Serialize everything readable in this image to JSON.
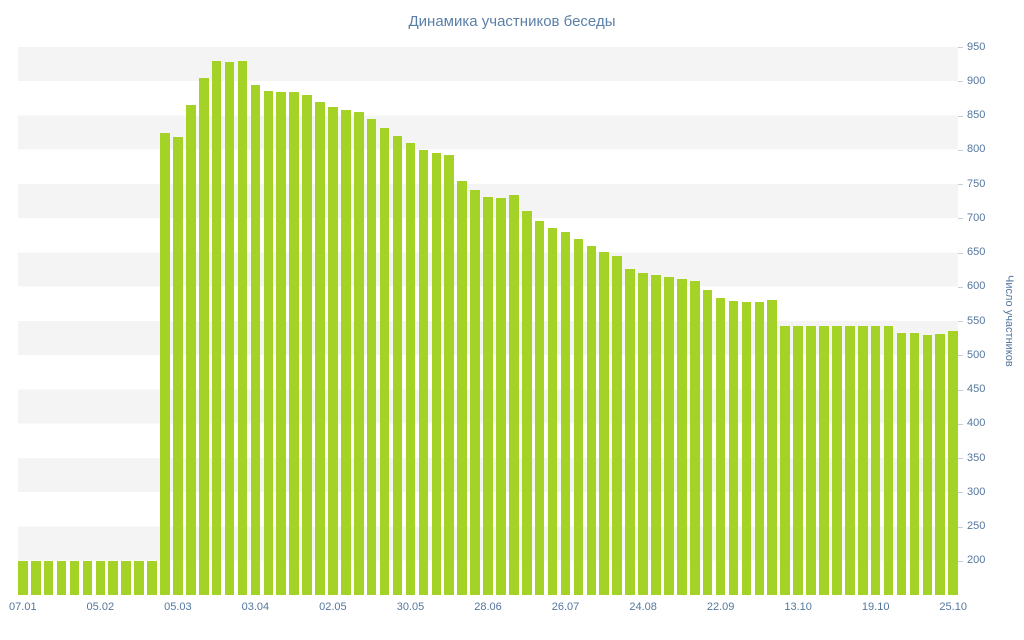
{
  "page": {
    "background": "#ffffff"
  },
  "chart_data": {
    "type": "bar",
    "title": "Динамика участников беседы",
    "xlabel": "",
    "ylabel": "Число участников",
    "ylim": [
      150,
      950
    ],
    "grid": "horizontal-stripe-bands",
    "legend": "none",
    "y_axis_side": "right",
    "yticks": [
      950,
      900,
      850,
      800,
      750,
      700,
      650,
      600,
      550,
      500,
      450,
      400,
      350,
      300,
      250,
      200
    ],
    "x_labels": [
      "07.01",
      "05.02",
      "05.03",
      "03.04",
      "02.05",
      "30.05",
      "28.06",
      "26.07",
      "24.08",
      "22.09",
      "13.10",
      "19.10",
      "25.10"
    ],
    "xtick_every": 6,
    "values": [
      200,
      200,
      200,
      200,
      200,
      200,
      200,
      200,
      200,
      200,
      200,
      825,
      818,
      865,
      905,
      930,
      928,
      930,
      895,
      886,
      885,
      884,
      880,
      870,
      862,
      858,
      855,
      845,
      832,
      820,
      810,
      800,
      795,
      793,
      755,
      742,
      731,
      730,
      734,
      710,
      696,
      686,
      680,
      670,
      660,
      651,
      645,
      626,
      620,
      617,
      614,
      612,
      608,
      595,
      583,
      579,
      578,
      578,
      580,
      543,
      543,
      543,
      543,
      543,
      543,
      543,
      543,
      543,
      533,
      532,
      530,
      531,
      535
    ],
    "colors": {
      "bar": "#a5d226",
      "stripe": "#f4f4f4",
      "text": "#54779e",
      "title": "#5b80a8",
      "tick": "#c6cdd4"
    }
  }
}
